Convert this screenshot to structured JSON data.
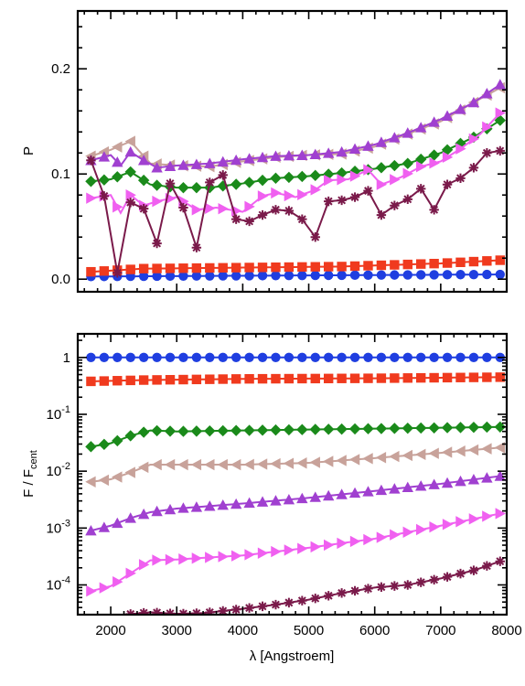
{
  "chart_data": [
    {
      "type": "line",
      "ylabel": "P",
      "xlim": [
        1500,
        8000
      ],
      "ylim": [
        -0.012,
        0.255
      ],
      "yscale": "linear",
      "y_ticks": [
        0.0,
        0.1,
        0.2
      ],
      "y_tick_labels": [
        "0.0",
        "0.1",
        "0.2"
      ],
      "x_ticks": [
        2000,
        3000,
        4000,
        5000,
        6000,
        7000,
        8000
      ],
      "series": [
        {
          "color": "#1f3ee0",
          "marker": "circle",
          "x": [
            1700,
            7900
          ],
          "values": [
            0.0025,
            0.0045
          ]
        },
        {
          "color": "#f03a1e",
          "marker": "square",
          "x": [
            1700,
            2500,
            4000,
            5500,
            7000,
            7900
          ],
          "values": [
            0.007,
            0.01,
            0.011,
            0.012,
            0.015,
            0.018
          ]
        },
        {
          "color": "#1a8a1a",
          "marker": "diamond",
          "x": [
            1700,
            2000,
            2300,
            2600,
            3000,
            3500,
            4000,
            4500,
            5000,
            5500,
            6000,
            6500,
            7000,
            7500,
            7900
          ],
          "values": [
            0.093,
            0.095,
            0.102,
            0.09,
            0.087,
            0.087,
            0.091,
            0.096,
            0.098,
            0.101,
            0.105,
            0.11,
            0.12,
            0.135,
            0.151
          ]
        },
        {
          "color": "#c8a29a",
          "marker": "triangle-left",
          "x": [
            1700,
            2000,
            2300,
            2600,
            3000,
            3500,
            4000,
            4500,
            5000,
            5500,
            6000,
            6500,
            7000,
            7500,
            7900
          ],
          "values": [
            0.117,
            0.123,
            0.131,
            0.11,
            0.108,
            0.107,
            0.112,
            0.116,
            0.118,
            0.119,
            0.126,
            0.138,
            0.15,
            0.168,
            0.182
          ]
        },
        {
          "color": "#a040d0",
          "marker": "triangle-up",
          "x": [
            1700,
            2000,
            2150,
            2300,
            2500,
            2700,
            3000,
            3500,
            4000,
            4500,
            5000,
            5500,
            6000,
            6500,
            7000,
            7500,
            7900
          ],
          "values": [
            0.113,
            0.118,
            0.108,
            0.121,
            0.113,
            0.106,
            0.108,
            0.11,
            0.114,
            0.117,
            0.118,
            0.121,
            0.128,
            0.139,
            0.152,
            0.168,
            0.185
          ]
        },
        {
          "color": "#f060f0",
          "marker": "triangle-right",
          "x": [
            1700,
            2000,
            2150,
            2300,
            2500,
            2700,
            3000,
            3300,
            3600,
            4000,
            4300,
            4500,
            4800,
            5100,
            5300,
            5600,
            5900,
            6100,
            6400,
            6700,
            7000,
            7300,
            7600,
            7900
          ],
          "values": [
            0.077,
            0.08,
            0.063,
            0.08,
            0.07,
            0.074,
            0.078,
            0.066,
            0.068,
            0.064,
            0.079,
            0.082,
            0.078,
            0.085,
            0.094,
            0.095,
            0.104,
            0.09,
            0.097,
            0.107,
            0.112,
            0.124,
            0.138,
            0.158
          ]
        },
        {
          "color": "#7a1a4a",
          "marker": "asterisk",
          "x": [
            1700,
            1900,
            2100,
            2300,
            2500,
            2700,
            2900,
            3100,
            3300,
            3500,
            3700,
            3900,
            4100,
            4300,
            4500,
            4700,
            4900,
            5100,
            5300,
            5500,
            5700,
            5900,
            6100,
            6300,
            6500,
            6700,
            6900,
            7100,
            7300,
            7500,
            7700,
            7900
          ],
          "values": [
            0.113,
            0.079,
            0.006,
            0.073,
            0.067,
            0.034,
            0.091,
            0.068,
            0.03,
            0.092,
            0.099,
            0.057,
            0.055,
            0.061,
            0.066,
            0.065,
            0.057,
            0.04,
            0.074,
            0.075,
            0.078,
            0.084,
            0.061,
            0.07,
            0.076,
            0.086,
            0.066,
            0.09,
            0.096,
            0.106,
            0.12,
            0.122
          ]
        }
      ]
    },
    {
      "type": "line",
      "ylabel": "F / Fcent",
      "ylabel_main": "F / F",
      "ylabel_sub": "cent",
      "xlabel": "λ [Angstroem]",
      "xlim": [
        1500,
        8000
      ],
      "ylim": [
        3e-05,
        2.6
      ],
      "yscale": "log",
      "y_ticks": [
        1,
        0.1,
        0.01,
        0.001,
        0.0001
      ],
      "y_tick_labels": [
        {
          "base": "1",
          "exp": ""
        },
        {
          "base": "10",
          "exp": "-1"
        },
        {
          "base": "10",
          "exp": "-2"
        },
        {
          "base": "10",
          "exp": "-3"
        },
        {
          "base": "10",
          "exp": "-4"
        }
      ],
      "x_ticks": [
        2000,
        3000,
        4000,
        5000,
        6000,
        7000,
        8000
      ],
      "x_tick_labels": [
        "2000",
        "3000",
        "4000",
        "5000",
        "6000",
        "7000",
        "8000"
      ],
      "series": [
        {
          "color": "#1f3ee0",
          "marker": "circle",
          "x": [
            1700,
            7900
          ],
          "values": [
            1.0,
            1.0
          ]
        },
        {
          "color": "#f03a1e",
          "marker": "square",
          "x": [
            1700,
            2500,
            4000,
            6000,
            7900
          ],
          "values": [
            0.38,
            0.4,
            0.42,
            0.43,
            0.45
          ]
        },
        {
          "color": "#1a8a1a",
          "marker": "diamond",
          "x": [
            1700,
            2000,
            2300,
            2600,
            3000,
            4000,
            5000,
            6000,
            7000,
            7900
          ],
          "values": [
            0.027,
            0.031,
            0.042,
            0.052,
            0.05,
            0.052,
            0.054,
            0.056,
            0.058,
            0.06
          ]
        },
        {
          "color": "#c8a29a",
          "marker": "triangle-left",
          "x": [
            1700,
            2000,
            2300,
            2600,
            3000,
            4000,
            5000,
            6000,
            7000,
            7900
          ],
          "values": [
            0.0065,
            0.0072,
            0.0095,
            0.013,
            0.013,
            0.013,
            0.014,
            0.017,
            0.021,
            0.026
          ]
        },
        {
          "color": "#a040d0",
          "marker": "triangle-up",
          "x": [
            1700,
            2000,
            2300,
            2600,
            3000,
            4000,
            5000,
            6000,
            7000,
            7900
          ],
          "values": [
            0.0009,
            0.0011,
            0.0015,
            0.0019,
            0.0022,
            0.0027,
            0.0034,
            0.0045,
            0.006,
            0.0082
          ]
        },
        {
          "color": "#f060f0",
          "marker": "triangle-right",
          "x": [
            1700,
            2000,
            2300,
            2600,
            3000,
            4000,
            5000,
            6000,
            7000,
            7900
          ],
          "values": [
            7.8e-05,
            9.5e-05,
            0.00016,
            0.00027,
            0.00028,
            0.00033,
            0.00045,
            0.00065,
            0.0011,
            0.0018
          ]
        },
        {
          "color": "#7a1a4a",
          "marker": "asterisk",
          "x": [
            2200,
            2600,
            3000,
            3400,
            4000,
            4500,
            5000,
            5500,
            6000,
            6500,
            7000,
            7500,
            7900
          ],
          "values": [
            3e-05,
            3.3e-05,
            3.1e-05,
            3.2e-05,
            3.8e-05,
            4.5e-05,
            5.5e-05,
            7.2e-05,
            9e-05,
            0.0001,
            0.00013,
            0.00018,
            0.00026
          ]
        }
      ]
    }
  ]
}
